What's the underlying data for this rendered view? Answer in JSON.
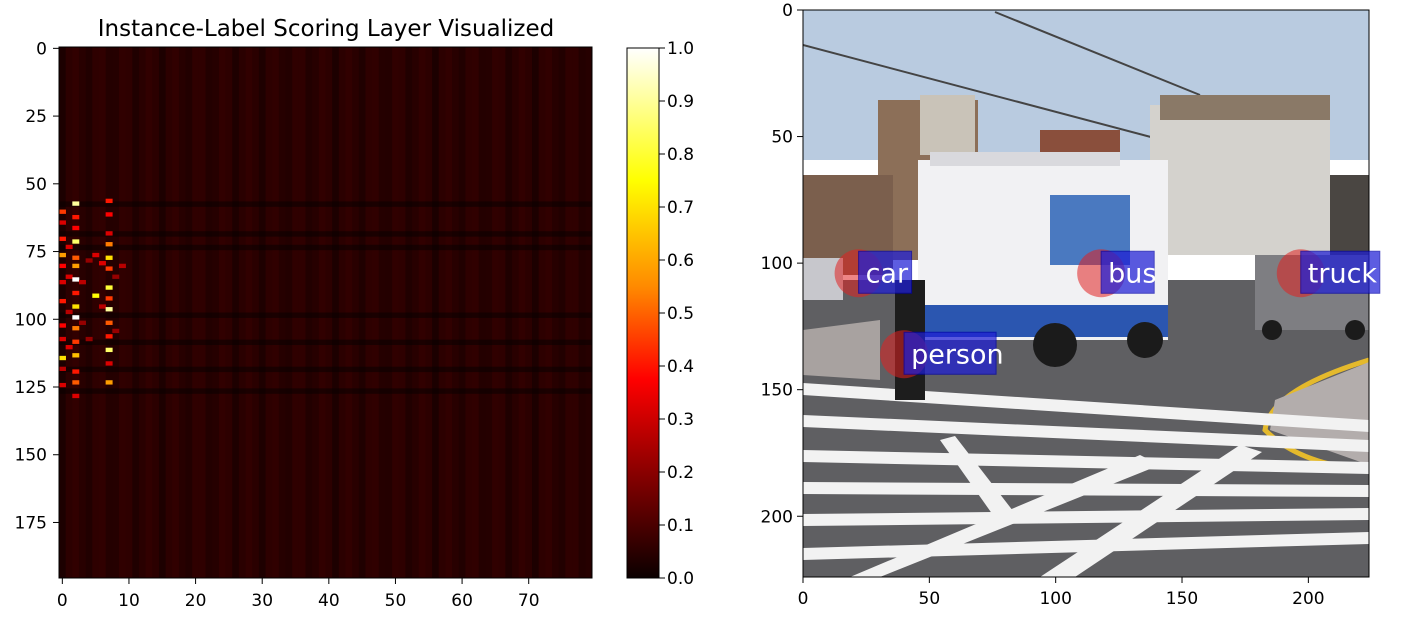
{
  "chart_data": [
    {
      "type": "heatmap",
      "title": "Instance-Label Scoring Layer Visualized",
      "x_ticks": [
        0,
        10,
        20,
        30,
        40,
        50,
        60,
        70
      ],
      "y_ticks": [
        0,
        25,
        50,
        75,
        100,
        125,
        150,
        175
      ],
      "xlim": [
        -0.5,
        79.5
      ],
      "ylim": [
        195.5,
        -0.5
      ],
      "n_cols": 80,
      "n_rows": 196,
      "colormap": "hot",
      "colorbar": {
        "range": [
          0.0,
          1.0
        ],
        "ticks": [
          "0.0",
          "0.1",
          "0.2",
          "0.3",
          "0.4",
          "0.5",
          "0.6",
          "0.7",
          "0.8",
          "0.9",
          "1.0"
        ]
      },
      "hot_cells": [
        {
          "col": 0,
          "row": 60,
          "v": 0.45
        },
        {
          "col": 0,
          "row": 64,
          "v": 0.3
        },
        {
          "col": 0,
          "row": 70,
          "v": 0.4
        },
        {
          "col": 0,
          "row": 76,
          "v": 0.6
        },
        {
          "col": 0,
          "row": 80,
          "v": 0.35
        },
        {
          "col": 0,
          "row": 86,
          "v": 0.3
        },
        {
          "col": 0,
          "row": 93,
          "v": 0.4
        },
        {
          "col": 0,
          "row": 102,
          "v": 0.35
        },
        {
          "col": 0,
          "row": 107,
          "v": 0.3
        },
        {
          "col": 0,
          "row": 114,
          "v": 0.7
        },
        {
          "col": 0,
          "row": 118,
          "v": 0.25
        },
        {
          "col": 0,
          "row": 124,
          "v": 0.3
        },
        {
          "col": 1,
          "row": 73,
          "v": 0.3
        },
        {
          "col": 1,
          "row": 84,
          "v": 0.3
        },
        {
          "col": 1,
          "row": 97,
          "v": 0.25
        },
        {
          "col": 1,
          "row": 110,
          "v": 0.3
        },
        {
          "col": 2,
          "row": 57,
          "v": 0.9
        },
        {
          "col": 2,
          "row": 62,
          "v": 0.4
        },
        {
          "col": 2,
          "row": 66,
          "v": 0.35
        },
        {
          "col": 2,
          "row": 71,
          "v": 0.85
        },
        {
          "col": 2,
          "row": 77,
          "v": 0.5
        },
        {
          "col": 2,
          "row": 80,
          "v": 0.6
        },
        {
          "col": 2,
          "row": 85,
          "v": 1.0
        },
        {
          "col": 2,
          "row": 90,
          "v": 0.4
        },
        {
          "col": 2,
          "row": 95,
          "v": 0.7
        },
        {
          "col": 2,
          "row": 99,
          "v": 1.0
        },
        {
          "col": 2,
          "row": 103,
          "v": 0.55
        },
        {
          "col": 2,
          "row": 108,
          "v": 0.45
        },
        {
          "col": 2,
          "row": 113,
          "v": 0.65
        },
        {
          "col": 2,
          "row": 119,
          "v": 0.4
        },
        {
          "col": 2,
          "row": 123,
          "v": 0.5
        },
        {
          "col": 2,
          "row": 128,
          "v": 0.3
        },
        {
          "col": 3,
          "row": 86,
          "v": 0.25
        },
        {
          "col": 3,
          "row": 101,
          "v": 0.2
        },
        {
          "col": 4,
          "row": 78,
          "v": 0.2
        },
        {
          "col": 4,
          "row": 107,
          "v": 0.2
        },
        {
          "col": 5,
          "row": 76,
          "v": 0.3
        },
        {
          "col": 5,
          "row": 91,
          "v": 0.75
        },
        {
          "col": 6,
          "row": 79,
          "v": 0.3
        },
        {
          "col": 6,
          "row": 95,
          "v": 0.25
        },
        {
          "col": 7,
          "row": 56,
          "v": 0.4
        },
        {
          "col": 7,
          "row": 61,
          "v": 0.35
        },
        {
          "col": 7,
          "row": 68,
          "v": 0.3
        },
        {
          "col": 7,
          "row": 72,
          "v": 0.55
        },
        {
          "col": 7,
          "row": 77,
          "v": 0.7
        },
        {
          "col": 7,
          "row": 81,
          "v": 0.45
        },
        {
          "col": 7,
          "row": 88,
          "v": 0.8
        },
        {
          "col": 7,
          "row": 92,
          "v": 0.45
        },
        {
          "col": 7,
          "row": 96,
          "v": 0.9
        },
        {
          "col": 7,
          "row": 101,
          "v": 0.5
        },
        {
          "col": 7,
          "row": 106,
          "v": 0.4
        },
        {
          "col": 7,
          "row": 111,
          "v": 0.85
        },
        {
          "col": 7,
          "row": 116,
          "v": 0.3
        },
        {
          "col": 7,
          "row": 123,
          "v": 0.6
        },
        {
          "col": 8,
          "row": 84,
          "v": 0.2
        },
        {
          "col": 8,
          "row": 104,
          "v": 0.2
        },
        {
          "col": 9,
          "row": 80,
          "v": 0.25
        }
      ]
    },
    {
      "type": "image",
      "x_ticks": [
        0,
        50,
        100,
        150,
        200
      ],
      "y_ticks": [
        0,
        50,
        100,
        150,
        200
      ],
      "xlim": [
        0,
        224
      ],
      "ylim": [
        224,
        0
      ],
      "labels": [
        {
          "text": "car",
          "x": 22,
          "y": 104
        },
        {
          "text": "bus",
          "x": 118,
          "y": 104
        },
        {
          "text": "truck",
          "x": 197,
          "y": 104
        },
        {
          "text": "person",
          "x": 40,
          "y": 136
        }
      ],
      "label_box_color": "#1f1fd6",
      "marker_color": "#e02020"
    }
  ]
}
